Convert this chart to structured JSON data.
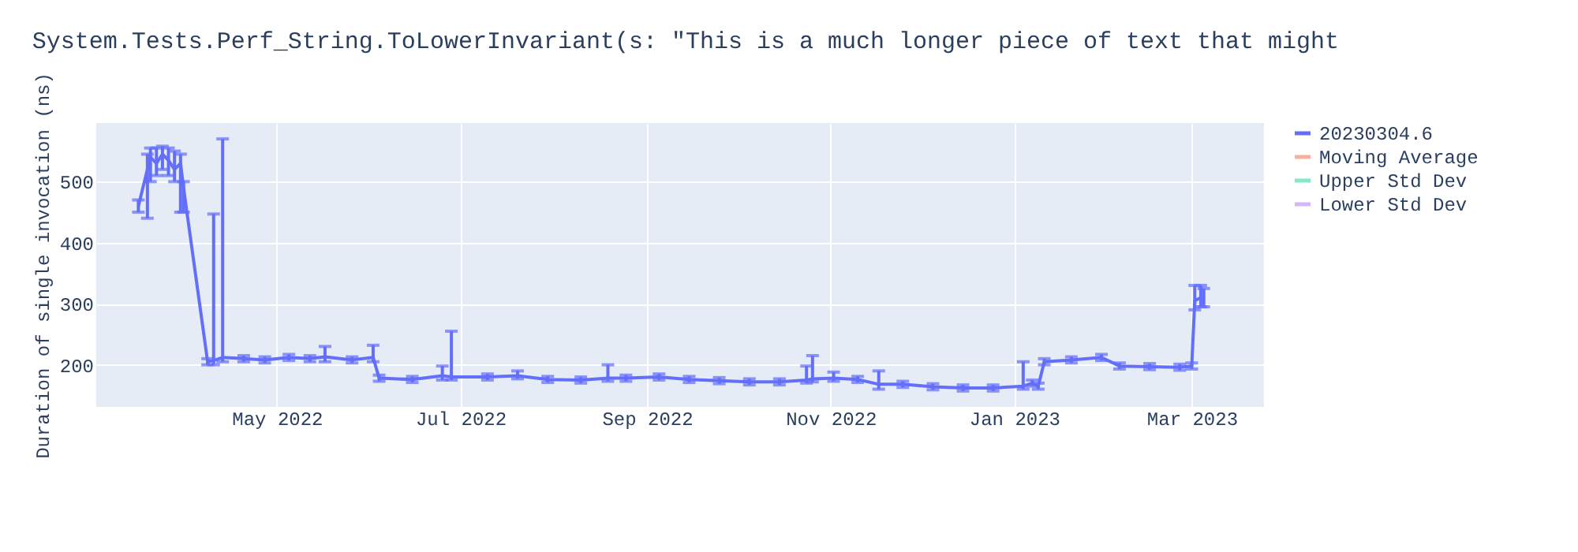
{
  "chart_data": {
    "type": "line",
    "title": "System.Tests.Perf_String.ToLowerInvariant(s: \"This is a much longer piece of text that might",
    "ylabel": "Duration of single invocation (ns)",
    "x": [
      "2022-03-16",
      "2022-03-19",
      "2022-03-20",
      "2022-03-22",
      "2022-03-24",
      "2022-03-26",
      "2022-03-28",
      "2022-03-30",
      "2022-03-31",
      "2022-04-08",
      "2022-04-10",
      "2022-04-13",
      "2022-04-20",
      "2022-04-27",
      "2022-05-05",
      "2022-05-12",
      "2022-05-17",
      "2022-05-26",
      "2022-06-02",
      "2022-06-04",
      "2022-06-15",
      "2022-06-25",
      "2022-06-28",
      "2022-07-10",
      "2022-07-20",
      "2022-07-30",
      "2022-08-10",
      "2022-08-19",
      "2022-08-25",
      "2022-09-05",
      "2022-09-15",
      "2022-09-25",
      "2022-10-05",
      "2022-10-15",
      "2022-10-24",
      "2022-10-26",
      "2022-11-02",
      "2022-11-10",
      "2022-11-17",
      "2022-11-25",
      "2022-12-05",
      "2022-12-15",
      "2022-12-25",
      "2023-01-04",
      "2023-01-07",
      "2023-01-09",
      "2023-01-11",
      "2023-01-20",
      "2023-01-30",
      "2023-02-05",
      "2023-02-15",
      "2023-02-25",
      "2023-03-01",
      "2023-03-02",
      "2023-03-04",
      "2023-03-05"
    ],
    "series": [
      {
        "name": "20230304.6",
        "color": "#636efa",
        "values": [
          460,
          520,
          540,
          530,
          545,
          535,
          520,
          530,
          490,
          205,
          207,
          212,
          210,
          208,
          212,
          210,
          213,
          208,
          212,
          178,
          176,
          182,
          180,
          180,
          182,
          176,
          175,
          178,
          178,
          180,
          176,
          174,
          172,
          172,
          175,
          177,
          178,
          176,
          168,
          168,
          164,
          162,
          162,
          165,
          170,
          165,
          205,
          208,
          212,
          198,
          197,
          196,
          198,
          305,
          310,
          305
        ],
        "errors": [
          [
            450,
            470
          ],
          [
            440,
            545
          ],
          [
            500,
            555
          ],
          [
            510,
            555
          ],
          [
            520,
            558
          ],
          [
            510,
            555
          ],
          [
            500,
            550
          ],
          [
            450,
            545
          ],
          [
            450,
            500
          ],
          [
            200,
            210
          ],
          [
            200,
            447
          ],
          [
            205,
            570
          ],
          [
            205,
            215
          ],
          [
            203,
            213
          ],
          [
            207,
            217
          ],
          [
            205,
            215
          ],
          [
            205,
            230
          ],
          [
            203,
            213
          ],
          [
            205,
            232
          ],
          [
            173,
            183
          ],
          [
            171,
            181
          ],
          [
            175,
            198
          ],
          [
            175,
            255
          ],
          [
            175,
            185
          ],
          [
            177,
            190
          ],
          [
            171,
            181
          ],
          [
            170,
            180
          ],
          [
            173,
            200
          ],
          [
            173,
            183
          ],
          [
            175,
            185
          ],
          [
            171,
            181
          ],
          [
            169,
            179
          ],
          [
            167,
            177
          ],
          [
            167,
            177
          ],
          [
            170,
            198
          ],
          [
            172,
            215
          ],
          [
            173,
            188
          ],
          [
            171,
            181
          ],
          [
            160,
            190
          ],
          [
            163,
            173
          ],
          [
            159,
            169
          ],
          [
            157,
            167
          ],
          [
            157,
            167
          ],
          [
            160,
            205
          ],
          [
            165,
            175
          ],
          [
            160,
            170
          ],
          [
            200,
            210
          ],
          [
            203,
            213
          ],
          [
            207,
            217
          ],
          [
            193,
            203
          ],
          [
            192,
            202
          ],
          [
            191,
            201
          ],
          [
            193,
            203
          ],
          [
            290,
            330
          ],
          [
            295,
            330
          ],
          [
            295,
            325
          ]
        ]
      },
      {
        "name": "Moving Average",
        "color": "#f7b0a0",
        "values": [
          null,
          null,
          null,
          null,
          null,
          null,
          null,
          null,
          null,
          null,
          null,
          null,
          null,
          null,
          null,
          null,
          null,
          null,
          null,
          null,
          null,
          null,
          null,
          null,
          null,
          null,
          null,
          null,
          null,
          null,
          null,
          null,
          null,
          null,
          null,
          null,
          null,
          null,
          null,
          null,
          null,
          null,
          null,
          null,
          null,
          null,
          null,
          null,
          null,
          null,
          null,
          null,
          null,
          null,
          null,
          null
        ]
      },
      {
        "name": "Upper Std Dev",
        "color": "#85e8c6",
        "values": [
          null,
          null,
          null,
          null,
          null,
          null,
          null,
          null,
          null,
          null,
          null,
          null,
          null,
          null,
          null,
          null,
          null,
          null,
          null,
          null,
          null,
          null,
          null,
          null,
          null,
          null,
          null,
          null,
          null,
          null,
          null,
          null,
          null,
          null,
          null,
          null,
          null,
          null,
          null,
          null,
          null,
          null,
          null,
          null,
          null,
          null,
          null,
          null,
          null,
          null,
          null,
          null,
          null,
          null,
          null,
          null
        ]
      },
      {
        "name": "Lower Std Dev",
        "color": "#d6b6fb",
        "values": [
          null,
          null,
          null,
          null,
          null,
          null,
          null,
          null,
          null,
          null,
          null,
          null,
          null,
          null,
          null,
          null,
          null,
          null,
          null,
          null,
          null,
          null,
          null,
          null,
          null,
          null,
          null,
          null,
          null,
          null,
          null,
          null,
          null,
          null,
          null,
          null,
          null,
          null,
          null,
          null,
          null,
          null,
          null,
          null,
          null,
          null,
          null,
          null,
          null,
          null,
          null,
          null,
          null,
          null,
          null,
          null
        ]
      }
    ],
    "xlim": [
      "2022-03-02",
      "2023-03-25"
    ],
    "xticks": [
      {
        "value": "2022-05-01",
        "label": "May 2022"
      },
      {
        "value": "2022-07-01",
        "label": "Jul 2022"
      },
      {
        "value": "2022-09-01",
        "label": "Sep 2022"
      },
      {
        "value": "2022-11-01",
        "label": "Nov 2022"
      },
      {
        "value": "2023-01-01",
        "label": "Jan 2023"
      },
      {
        "value": "2023-03-01",
        "label": "Mar 2023"
      }
    ],
    "ylim": [
      131,
      596
    ],
    "yticks": [
      200,
      300,
      400,
      500
    ],
    "grid": true,
    "legend": "top right",
    "marker": "none",
    "line_style": "solid"
  }
}
